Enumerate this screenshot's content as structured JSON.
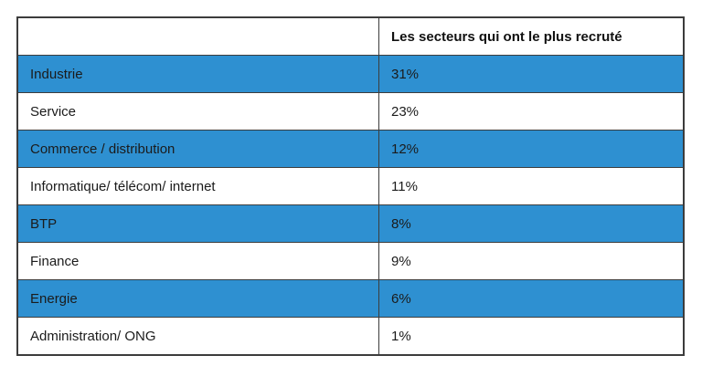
{
  "table": {
    "header": {
      "sector_label": "",
      "value_label": "Les secteurs qui ont le plus recruté"
    },
    "rows": [
      {
        "sector": "Industrie",
        "value": "31%",
        "highlighted": true
      },
      {
        "sector": "Service",
        "value": "23%",
        "highlighted": false
      },
      {
        "sector": "Commerce / distribution",
        "value": "12%",
        "highlighted": true
      },
      {
        "sector": "Informatique/ télécom/ internet",
        "value": "11%",
        "highlighted": false
      },
      {
        "sector": "BTP",
        "value": "8%",
        "highlighted": true
      },
      {
        "sector": "Finance",
        "value": "9%",
        "highlighted": false
      },
      {
        "sector": "Energie",
        "value": "6%",
        "highlighted": true
      },
      {
        "sector": "Administration/ ONG",
        "value": "1%",
        "highlighted": false
      }
    ],
    "colors": {
      "highlight_blue": "#2E90D1",
      "border": "#3c3c3c",
      "text": "#1b1b1b",
      "row_background": "#ffffff"
    }
  },
  "chart_data": {
    "type": "table",
    "title": "Les secteurs qui ont le plus recruté",
    "categories": [
      "Industrie",
      "Service",
      "Commerce / distribution",
      "Informatique/ télécom/ internet",
      "BTP",
      "Finance",
      "Energie",
      "Administration/ ONG"
    ],
    "values": [
      31,
      23,
      12,
      11,
      8,
      9,
      6,
      1
    ],
    "unit": "%",
    "xlabel": "",
    "ylabel": "",
    "legend": "none",
    "notes": "Two-column table; every other data row (1st, 3rd, 5th, 7th) highlighted with blue background"
  }
}
